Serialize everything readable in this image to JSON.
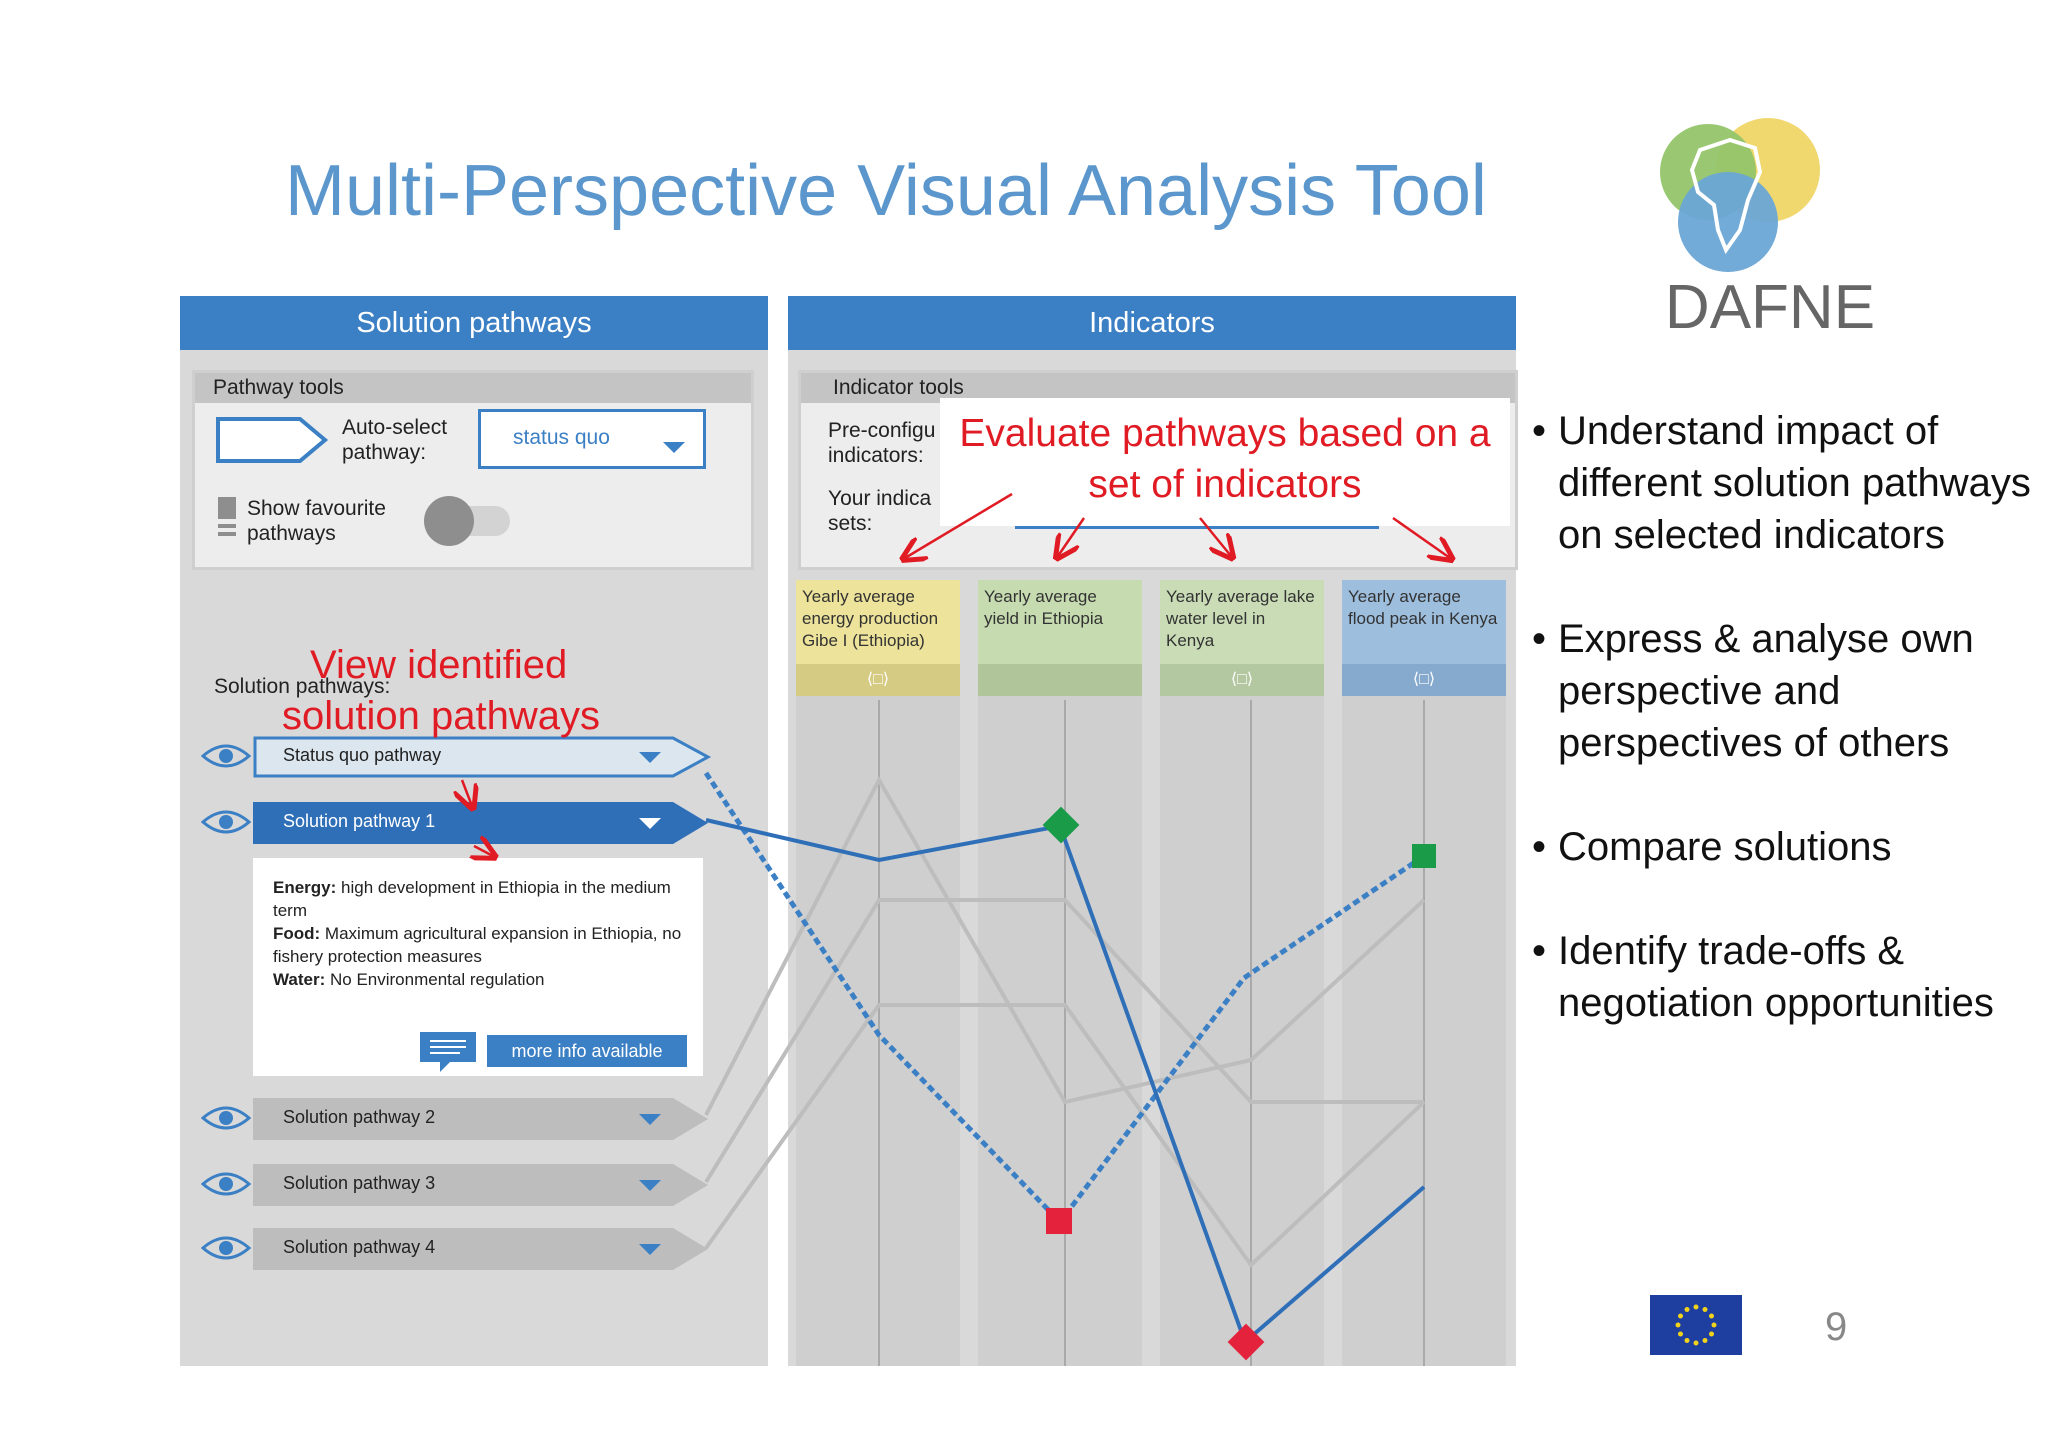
{
  "slide": {
    "title": "Multi-Perspective Visual Analysis Tool",
    "logo_text": "DAFNE",
    "page_number": "9"
  },
  "left_panel": {
    "header": "Solution pathways",
    "tools_title": "Pathway tools",
    "auto_select_label_1": "Auto-select",
    "auto_select_label_2": "pathway:",
    "auto_select_value": "status quo",
    "show_fav_label_1": "Show favourite",
    "show_fav_label_2": "pathways",
    "pathways_label": "Solution pathways:",
    "pathways": [
      {
        "label": "Status quo pathway",
        "state": "selected-outline"
      },
      {
        "label": "Solution pathway 1",
        "state": "active"
      },
      {
        "label": "Solution pathway 2",
        "state": "inactive"
      },
      {
        "label": "Solution pathway 3",
        "state": "inactive"
      },
      {
        "label": "Solution pathway 4",
        "state": "inactive"
      }
    ],
    "detail": {
      "energy_key": "Energy:",
      "energy_text": " high development in Ethiopia in the medium term",
      "food_key": "Food:",
      "food_text": " Maximum agricultural expansion in Ethiopia, no fishery protection measures",
      "water_key": "Water:",
      "water_text": " No Environmental regulation",
      "more_info": "more info available"
    }
  },
  "right_panel": {
    "header": "Indicators",
    "tools_title": "Indicator tools",
    "preconfig_label_1": "Pre-configu",
    "preconfig_label_2": "indicators:",
    "your_ind_label_1": "Your indica",
    "your_ind_label_2": "sets:",
    "handle_glyph": "⟨□⟩",
    "indicators": [
      {
        "label": "Yearly average energy production Gibe I (Ethiopia)",
        "color": "#ede39a"
      },
      {
        "label": "Yearly average yield in Ethiopia",
        "color": "#c6dbb0"
      },
      {
        "label": "Yearly average lake water level in Kenya",
        "color": "#c9dcb6"
      },
      {
        "label": "Yearly average flood peak in Kenya",
        "color": "#9dbedd"
      }
    ]
  },
  "annotations": {
    "view_pathways_1": "View identified",
    "view_pathways_2": "solution pathways",
    "evaluate_1": "Evaluate pathways based on a",
    "evaluate_2": "set of indicators"
  },
  "bullets": [
    "Understand impact of different solution pathways on selected indicators",
    "Express & analyse own perspective and perspectives of others",
    "Compare solutions",
    "Identify trade-offs & negotiation opportunities"
  ],
  "colors": {
    "title": "#5b97cc",
    "panel_header": "#3b7fc4",
    "annotation": "#e01b24",
    "status_quo_line": "#3b7fc4",
    "pathway1_line": "#2f6fb8",
    "gray_lines": "#bdbdbe"
  }
}
